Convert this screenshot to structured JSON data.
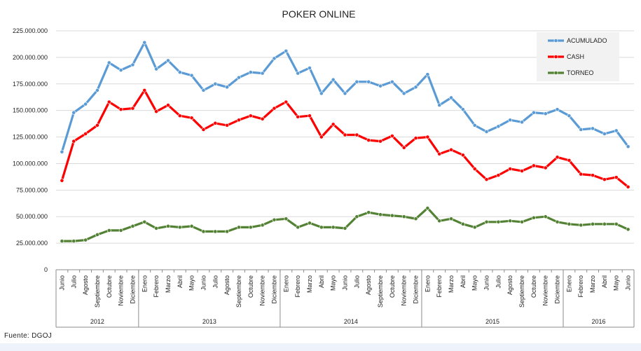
{
  "chart_data": {
    "type": "line",
    "title": "POKER ONLINE",
    "y_ticks": [
      "0",
      "25.000.000",
      "50.000.000",
      "75.000.000",
      "100.000.000",
      "125.000.000",
      "150.000.000",
      "175.000.000",
      "200.000.000",
      "225.000.000"
    ],
    "ylim": [
      0,
      225000000
    ],
    "grid": "horizontal",
    "legend_placement": "top-right",
    "categories": [
      "Junio",
      "Julio",
      "Agosto",
      "Septiembre",
      "Octubre",
      "Noviembre",
      "Diciembre",
      "Enero",
      "Febrero",
      "Marzo",
      "Abril",
      "Mayo",
      "Junio",
      "Julio",
      "Agosto",
      "Septiembre",
      "Octubre",
      "Noviembre",
      "Diciembre",
      "Enero",
      "Febrero",
      "Marzo",
      "Abril",
      "Mayo",
      "Junio",
      "Julio",
      "Agosto",
      "Septiembre",
      "Octubre",
      "Noviembre",
      "Diciembre",
      "Enero",
      "Febrero",
      "Marzo",
      "Abril",
      "Mayo",
      "Junio",
      "Julio",
      "Agosto",
      "Septiembre",
      "Octubre",
      "Noviembre",
      "Diciembre",
      "Enero",
      "Febrero",
      "Marzo",
      "Abril",
      "Mayo",
      "Junio"
    ],
    "years": [
      {
        "label": "2012",
        "count": 7
      },
      {
        "label": "2013",
        "count": 12
      },
      {
        "label": "2014",
        "count": 12
      },
      {
        "label": "2015",
        "count": 12
      },
      {
        "label": "2016",
        "count": 6
      }
    ],
    "series": [
      {
        "name": "ACUMULADO",
        "color": "#5b9bd5",
        "values": [
          111000000,
          148000000,
          156000000,
          169000000,
          195000000,
          188000000,
          193000000,
          214000000,
          189000000,
          197000000,
          186000000,
          183000000,
          169000000,
          175000000,
          172000000,
          181000000,
          186000000,
          185000000,
          199000000,
          206000000,
          185000000,
          190000000,
          166000000,
          179000000,
          166000000,
          177000000,
          177000000,
          173000000,
          177000000,
          166000000,
          172000000,
          184000000,
          155000000,
          162000000,
          151000000,
          136000000,
          130000000,
          135000000,
          141000000,
          139000000,
          148000000,
          147000000,
          151000000,
          145000000,
          132000000,
          133000000,
          128000000,
          131000000,
          116000000
        ]
      },
      {
        "name": "CASH",
        "color": "#ff0000",
        "values": [
          84000000,
          121000000,
          128000000,
          136000000,
          158000000,
          151000000,
          152000000,
          169000000,
          149000000,
          155000000,
          145000000,
          143000000,
          132000000,
          138000000,
          136000000,
          141000000,
          145000000,
          142000000,
          152000000,
          158000000,
          144000000,
          145000000,
          125000000,
          137000000,
          127000000,
          127000000,
          122000000,
          121000000,
          126000000,
          115000000,
          124000000,
          125000000,
          109000000,
          113000000,
          108000000,
          95000000,
          85000000,
          89000000,
          95000000,
          93000000,
          98000000,
          96000000,
          106000000,
          103000000,
          90000000,
          89000000,
          85000000,
          87000000,
          78000000
        ]
      },
      {
        "name": "TORNEO",
        "color": "#548235",
        "values": [
          27000000,
          27000000,
          28000000,
          33000000,
          37000000,
          37000000,
          41000000,
          45000000,
          39000000,
          41000000,
          40000000,
          41000000,
          36000000,
          36000000,
          36000000,
          40000000,
          40000000,
          42000000,
          47000000,
          48000000,
          40000000,
          44000000,
          40000000,
          40000000,
          39000000,
          50000000,
          54000000,
          52000000,
          51000000,
          50000000,
          48000000,
          58000000,
          46000000,
          48000000,
          43000000,
          40000000,
          45000000,
          45000000,
          46000000,
          45000000,
          49000000,
          50000000,
          45000000,
          43000000,
          42000000,
          43000000,
          43000000,
          43000000,
          38000000
        ]
      }
    ]
  },
  "source": "Fuente: DGOJ"
}
